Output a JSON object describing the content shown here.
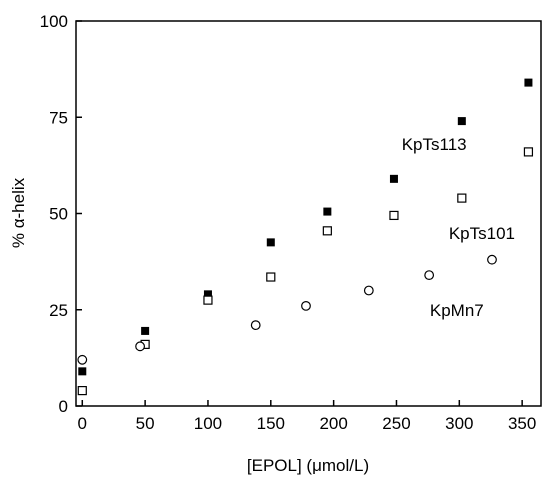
{
  "chart_data": {
    "type": "scatter",
    "title": "",
    "xlabel": "[EPOL] (μmol/L)",
    "ylabel": "% α-helix",
    "xlim": [
      -5,
      365
    ],
    "ylim": [
      0,
      100
    ],
    "xticks": [
      0,
      50,
      100,
      150,
      200,
      250,
      300,
      350
    ],
    "yticks": [
      0,
      25,
      50,
      75,
      100
    ],
    "grid": false,
    "legend": "none",
    "series": [
      {
        "name": "KpTs113",
        "marker": "filled-square",
        "color": "#000000",
        "points": [
          [
            0,
            9
          ],
          [
            50,
            19.5
          ],
          [
            100,
            29
          ],
          [
            150,
            42.5
          ],
          [
            195,
            50.5
          ],
          [
            248,
            59
          ],
          [
            302,
            74
          ],
          [
            355,
            84
          ]
        ]
      },
      {
        "name": "KpTs101",
        "marker": "open-square",
        "color": "#000000",
        "points": [
          [
            0,
            4
          ],
          [
            50,
            16
          ],
          [
            100,
            27.5
          ],
          [
            150,
            33.5
          ],
          [
            195,
            45.5
          ],
          [
            248,
            49.5
          ],
          [
            302,
            54
          ],
          [
            355,
            66
          ]
        ]
      },
      {
        "name": "KpMn7",
        "marker": "open-circle",
        "color": "#000000",
        "points": [
          [
            0,
            12
          ],
          [
            46,
            15.5
          ],
          [
            138,
            21
          ],
          [
            178,
            26
          ],
          [
            228,
            30
          ],
          [
            276,
            34
          ],
          [
            326,
            38
          ]
        ]
      }
    ],
    "annotations": [
      {
        "text": "KpTs113",
        "x": 280,
        "y": 68
      },
      {
        "text": "KpTs101",
        "x": 318,
        "y": 45
      },
      {
        "text": "KpMn7",
        "x": 298,
        "y": 25
      }
    ]
  }
}
